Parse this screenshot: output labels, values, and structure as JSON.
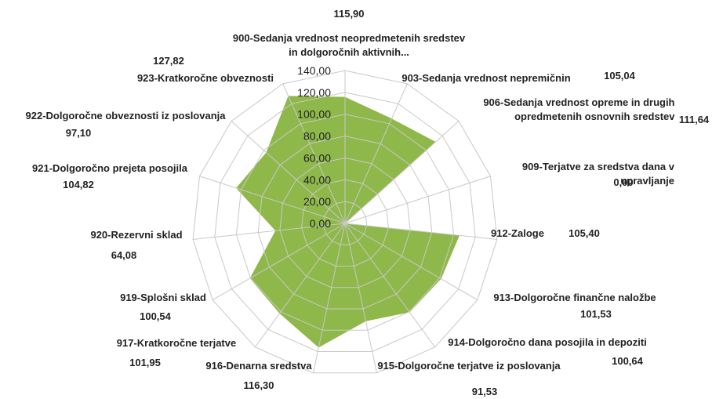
{
  "chart_data": {
    "type": "radar",
    "categories": [
      "900-Sedanja vrednost neopredmetenih sredstev in dolgoročnih aktivnih...",
      "903-Sedanja vrednost nepremičnin",
      "906-Sedanja vrednost opreme in drugih opredmetenih osnovnih sredstev",
      "909-Terjatve za sredstva dana v upravljanje",
      "912-Zaloge",
      "913-Dolgoročne finančne naložbe",
      "914-Dolgoročno dana posojila in depoziti",
      "915-Dolgoročne terjatve iz poslovanja",
      "916-Denarna sredstva",
      "917-Kratkoročne terjatve",
      "919-Splošni sklad",
      "920-Rezervni sklad",
      "921-Dolgoročno prejeta posojila",
      "922-Dolgoročne obveznosti iz poslovanja",
      "923-Kratkoročne obveznosti"
    ],
    "values": [
      115.9,
      105.04,
      111.64,
      0.0,
      105.4,
      101.53,
      100.64,
      91.53,
      116.3,
      101.95,
      100.54,
      64.08,
      104.82,
      97.1,
      127.82
    ],
    "value_labels": [
      "115,90",
      "105,04",
      "111,64",
      "0,00",
      "105,40",
      "101,53",
      "100,64",
      "91,53",
      "116,30",
      "101,95",
      "100,54",
      "64,08",
      "104,82",
      "97,10",
      "127,82"
    ],
    "color": "#8fb84a",
    "ylim": [
      0,
      140
    ],
    "yticks": [
      {
        "value": 0,
        "label": "0,00"
      },
      {
        "value": 20,
        "label": "20,00"
      },
      {
        "value": 40,
        "label": "40,00"
      },
      {
        "value": 60,
        "label": "60,00"
      },
      {
        "value": 80,
        "label": "80,00"
      },
      {
        "value": 100,
        "label": "100,00"
      },
      {
        "value": 120,
        "label": "120,00"
      },
      {
        "value": 140,
        "label": "140,00"
      }
    ],
    "grid": true
  }
}
